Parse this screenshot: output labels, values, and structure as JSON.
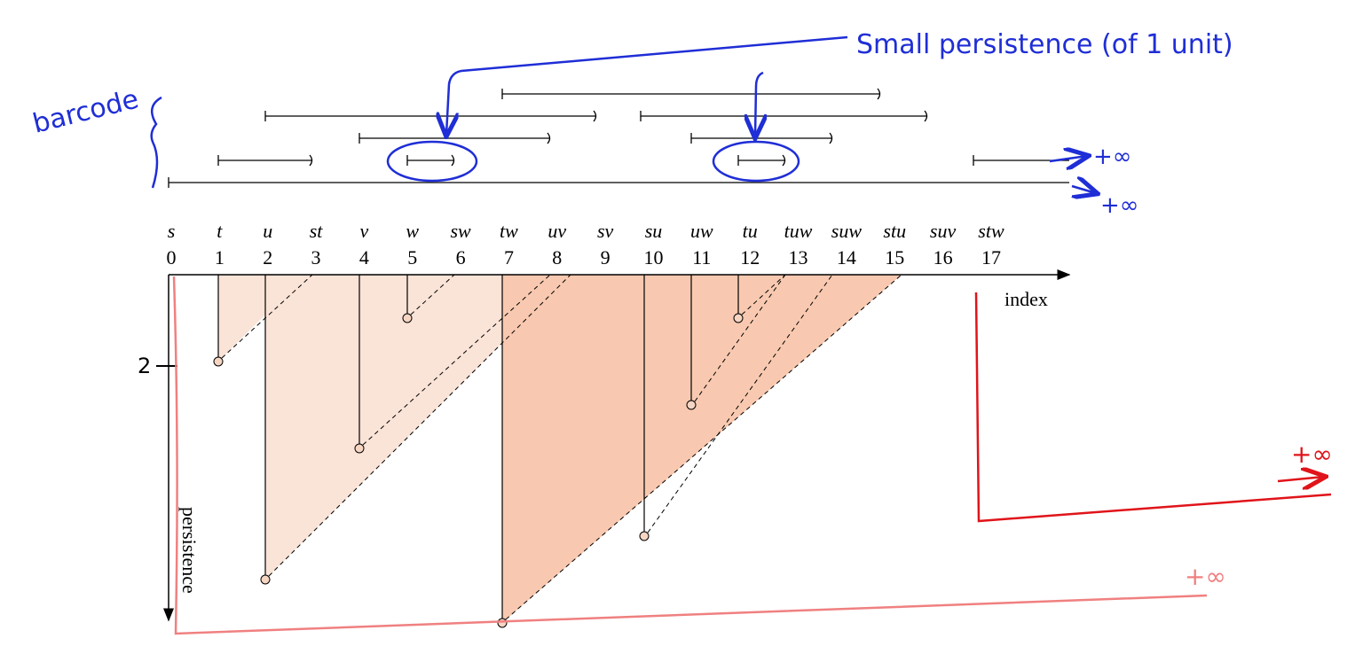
{
  "annotations": {
    "small_persistence": "Small persistence (of 1 unit)",
    "barcode": "barcode",
    "infinity_labels": [
      "+∞",
      "+∞",
      "+∞",
      "+∞"
    ],
    "tick_2": "2"
  },
  "axis": {
    "index_label": "index",
    "persistence_label": "persistence",
    "simplices": [
      "s",
      "t",
      "u",
      "st",
      "v",
      "w",
      "sw",
      "tw",
      "uv",
      "sv",
      "su",
      "uw",
      "tu",
      "tuw",
      "suw",
      "stu",
      "suv",
      "stw"
    ],
    "indices": [
      0,
      1,
      2,
      3,
      4,
      5,
      6,
      7,
      8,
      9,
      10,
      11,
      12,
      13,
      14,
      15,
      16,
      17
    ]
  }
}
